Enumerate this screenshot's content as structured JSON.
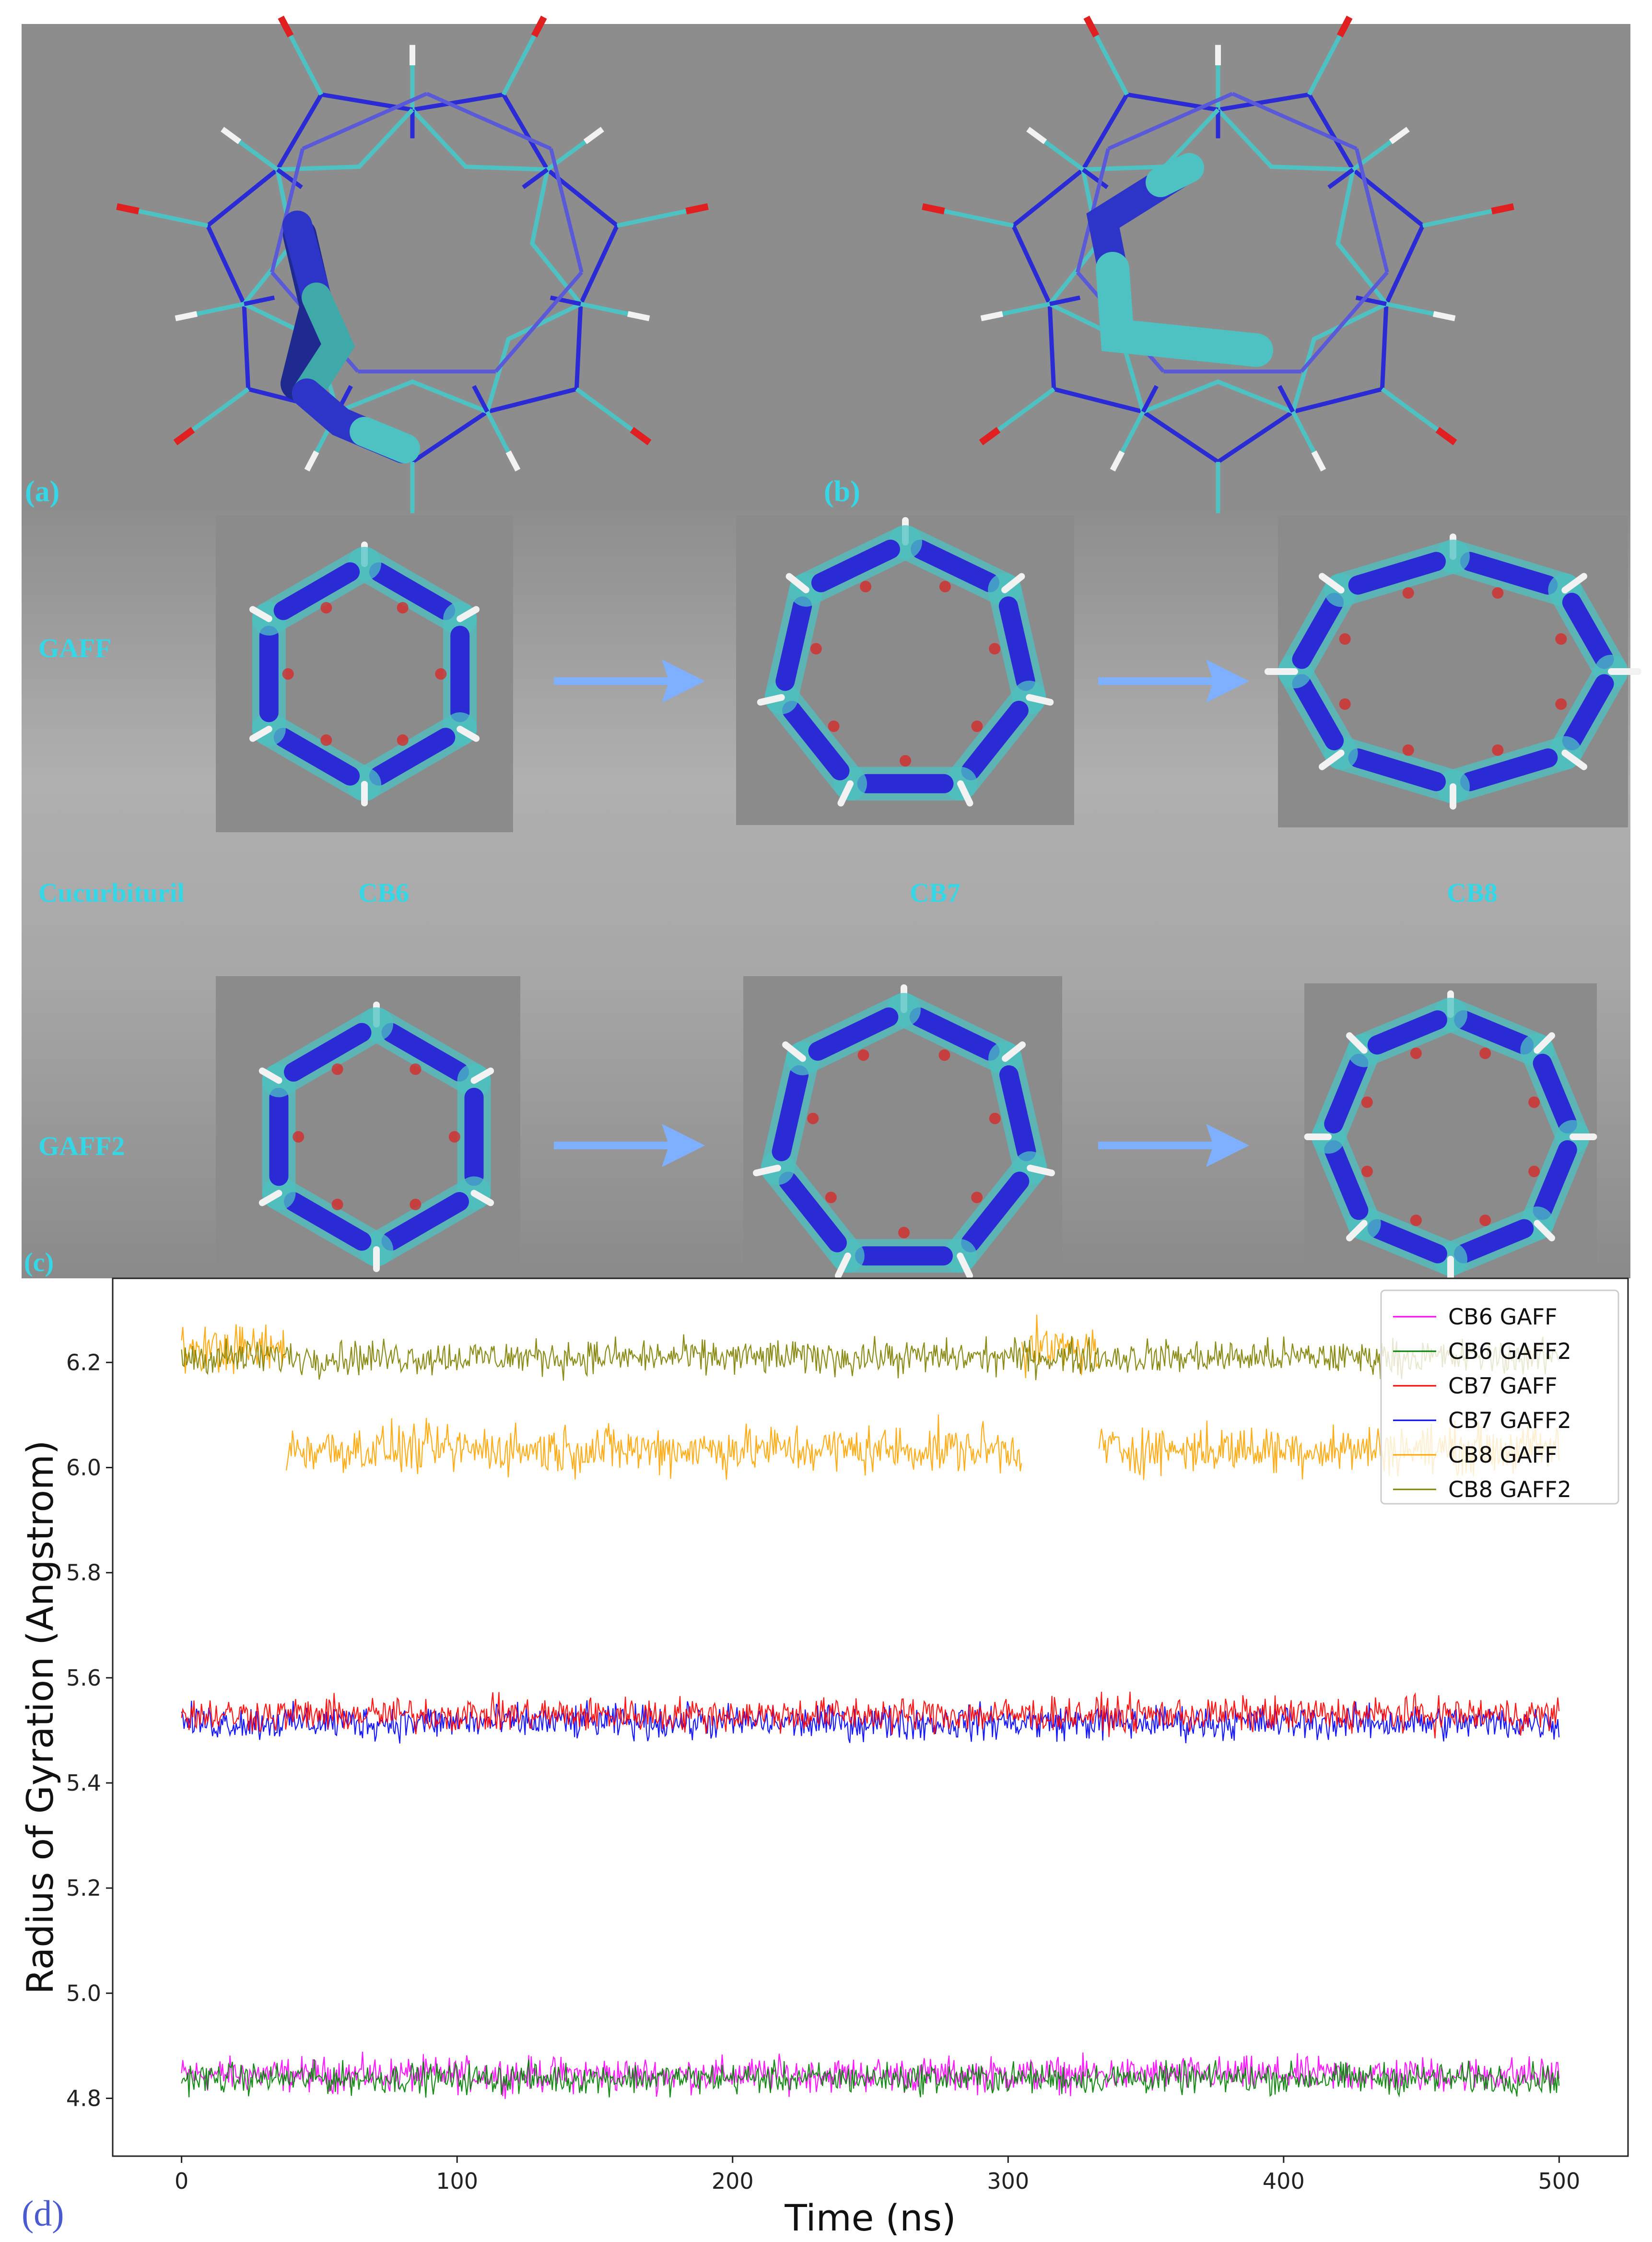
{
  "panels": {
    "a_label": "(a)",
    "b_label": "(b)",
    "c_label": "(c)",
    "d_label": "(d)",
    "c_rows": {
      "gaff": "GAFF",
      "gaff2": "GAFF2",
      "cucurbituril": "Cucurbituril",
      "cb6": "CB6",
      "cb7": "CB7",
      "cb8": "CB8"
    }
  },
  "colors": {
    "carbon": "#4ec2c2",
    "nitrogen": "#2b2bd6",
    "oxygen": "#e02020",
    "hydrogen": "#f2f2f2",
    "label_cyan": "#35d6e6",
    "arrow": "#7fb0ff",
    "panel_bg": "#8e8e8e"
  },
  "chart_data": {
    "type": "line",
    "xlabel": "Time (ns)",
    "ylabel": "Radius of Gyration (Angstrom)",
    "xlim": [
      -25,
      525
    ],
    "ylim": [
      4.69,
      6.36
    ],
    "xticks": [
      0,
      100,
      200,
      300,
      400,
      500
    ],
    "yticks": [
      4.8,
      5.0,
      5.2,
      5.4,
      5.6,
      5.8,
      6.0,
      6.2
    ],
    "legend_position": "top-right",
    "grid": false,
    "series": [
      {
        "name": "CB6 GAFF",
        "color": "#ff00ff",
        "mean": 4.845,
        "spread": 0.025,
        "segments": [
          [
            0,
            500
          ]
        ]
      },
      {
        "name": "CB6 GAFF2",
        "color": "#008000",
        "mean": 4.838,
        "spread": 0.022,
        "segments": [
          [
            0,
            500
          ]
        ]
      },
      {
        "name": "CB7 GAFF",
        "color": "#ff0000",
        "mean": 5.53,
        "spread": 0.025,
        "segments": [
          [
            0,
            500
          ]
        ]
      },
      {
        "name": "CB7 GAFF2",
        "color": "#0000ff",
        "mean": 5.515,
        "spread": 0.025,
        "segments": [
          [
            0,
            500
          ]
        ]
      },
      {
        "name": "CB8 GAFF",
        "color": "#ffa500",
        "mean_high": 6.225,
        "mean": 6.035,
        "spread": 0.035,
        "segments": [
          [
            0,
            38,
            6.225
          ],
          [
            38,
            305,
            6.035
          ],
          [
            305,
            333,
            6.225
          ],
          [
            333,
            500,
            6.035
          ]
        ]
      },
      {
        "name": "CB8 GAFF2",
        "color": "#808000",
        "mean": 6.21,
        "spread": 0.025,
        "segments": [
          [
            0,
            500
          ]
        ]
      }
    ]
  }
}
